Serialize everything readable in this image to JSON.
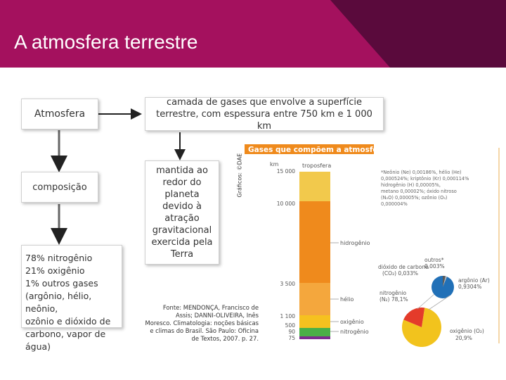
{
  "header": {
    "title": "A atmosfera terrestre"
  },
  "boxes": {
    "atmosfera": "Atmosfera",
    "definition": "camada de gases que envolve a superfície terrestre, com espessura entre 750 km e 1 000 km",
    "composicao": "composição",
    "mantida": "mantida ao redor do planeta devido à atração gravitacional exercida pela Terra",
    "gases_lines": [
      "78% nitrogênio",
      "21% oxigênio",
      "1% outros gases",
      "(argônio, hélio, neônio,",
      "ozônio e dióxido de",
      "carbono, vapor de água)"
    ]
  },
  "credit": "Gráficos: ©DAE",
  "fonte_lines": [
    "Fonte: MENDONÇA, Francisco de",
    "Assis; DANNI-OLIVEIRA, Inês",
    "Moresco. Climatologia: noções básicas",
    "e climas do Brasil. São Paulo: Oficina",
    "de Textos, 2007. p. 27."
  ],
  "chart_data": {
    "type": "diagram",
    "title": "Gases que compõem a atmosfera",
    "ylabel": "km",
    "ticks": [
      "15 000",
      "10 000",
      "3 500",
      "1 100",
      "500",
      "90",
      "75"
    ],
    "layers": [
      {
        "name": "troposfera",
        "color": "#f2c94c"
      },
      {
        "name": "hidrogênio",
        "color": "#ef8a1c"
      },
      {
        "name": "hélio",
        "color": "#f4a73d"
      },
      {
        "name": "oxigênio",
        "color": "#f6c11f"
      },
      {
        "name": "nitrogênio",
        "color": "#4bb048"
      },
      {
        "name": "",
        "color": "#7c2e8f"
      }
    ],
    "note_lines": [
      "*Neônio (Ne) 0,00186%, hélio (He)",
      "0,000524%; kriptônio (Kr) 0,000114%",
      "hidrogênio (H) 0,00005%,",
      "metano 0,00002%; óxido nitroso",
      "(N₂O) 0,00005%; ozônio (O₃)",
      "0,000004%"
    ],
    "pie": {
      "slices": [
        {
          "name": "nitrogênio",
          "label": "nitrogênio (N₂) 78,1%",
          "value": 78.1,
          "color": "#f2c31d"
        },
        {
          "name": "oxigênio",
          "label": "oxigênio (O₂) 20,9%",
          "value": 20.9,
          "color": "#e43b2a"
        },
        {
          "name": "argônio",
          "label": "argônio (Ar) 0,9304%",
          "value": 0.9304,
          "color": "#2170b7"
        },
        {
          "name": "dióxido de carbono",
          "label": "dióxido de carbono (CO₂) 0,033%",
          "value": 0.033,
          "color": "#5a5a5a"
        },
        {
          "name": "outros",
          "label": "outros* 0,003%",
          "value": 0.003,
          "color": "#bbbbbb"
        }
      ]
    }
  },
  "colors": {
    "header_main": "#a4115e",
    "header_dark": "#5a0a3c",
    "chart_title_bg": "#ef8a1c"
  }
}
